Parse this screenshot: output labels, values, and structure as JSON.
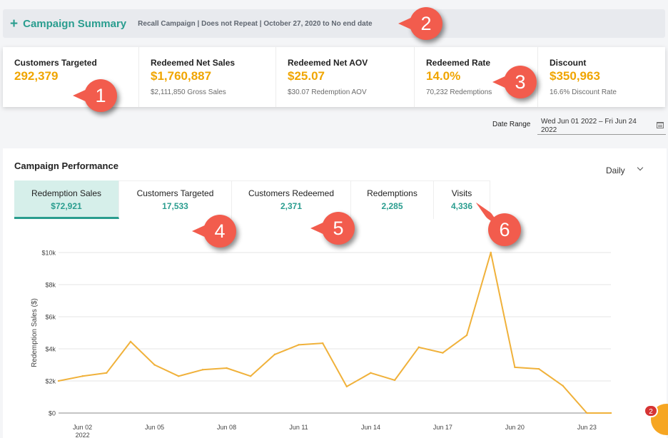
{
  "summary": {
    "plus_glyph": "+",
    "title": "Campaign Summary",
    "subtitle": "Recall Campaign | Does not Repeat | October 27, 2020 to No end date"
  },
  "kpis": [
    {
      "label": "Customers Targeted",
      "value": "292,379",
      "sub": ""
    },
    {
      "label": "Redeemed Net Sales",
      "value": "$1,760,887",
      "sub": "$2,111,850 Gross Sales"
    },
    {
      "label": "Redeemed Net AOV",
      "value": "$25.07",
      "sub": "$30.07 Redemption AOV"
    },
    {
      "label": "Redeemed Rate",
      "value": "14.0%",
      "sub": "70,232 Redemptions"
    },
    {
      "label": "Discount",
      "value": "$350,963",
      "sub": "16.6% Discount Rate"
    }
  ],
  "date_range": {
    "label": "Date Range",
    "value": "Wed Jun 01 2022 – Fri Jun 24 2022",
    "icon": "calendar-icon"
  },
  "performance": {
    "title": "Campaign Performance",
    "period": "Daily",
    "tabs": [
      {
        "label": "Redemption Sales",
        "value": "$72,921",
        "active": true
      },
      {
        "label": "Customers Targeted",
        "value": "17,533",
        "active": false
      },
      {
        "label": "Customers Redeemed",
        "value": "2,371",
        "active": false
      },
      {
        "label": "Redemptions",
        "value": "2,285",
        "active": false
      },
      {
        "label": "Visits",
        "value": "4,336",
        "active": false
      }
    ]
  },
  "chart_data": {
    "type": "line",
    "title": "",
    "xlabel": "",
    "ylabel": "Redemption Sales ($)",
    "x": [
      "2022-06-01",
      "2022-06-02",
      "2022-06-03",
      "2022-06-04",
      "2022-06-05",
      "2022-06-06",
      "2022-06-07",
      "2022-06-08",
      "2022-06-09",
      "2022-06-10",
      "2022-06-11",
      "2022-06-12",
      "2022-06-13",
      "2022-06-14",
      "2022-06-15",
      "2022-06-16",
      "2022-06-17",
      "2022-06-18",
      "2022-06-19",
      "2022-06-20",
      "2022-06-21",
      "2022-06-22",
      "2022-06-23",
      "2022-06-24"
    ],
    "values": [
      2000,
      2300,
      2500,
      4450,
      3000,
      2300,
      2700,
      2800,
      2300,
      3650,
      4250,
      4350,
      1650,
      2500,
      2050,
      4100,
      3750,
      4850,
      10000,
      2850,
      2750,
      1700,
      0,
      0
    ],
    "ylim": [
      0,
      10000
    ],
    "yticks": [
      0,
      2000,
      4000,
      6000,
      8000,
      10000
    ],
    "ytick_labels": [
      "$0",
      "$2k",
      "$4k",
      "$6k",
      "$8k",
      "$10k"
    ],
    "xtick_labels": [
      "Jun 02",
      "Jun 05",
      "Jun 08",
      "Jun 11",
      "Jun 14",
      "Jun 17",
      "Jun 20",
      "Jun 23"
    ],
    "xtick_sublabel": "2022",
    "xtick_dates": [
      "2022-06-02",
      "2022-06-05",
      "2022-06-08",
      "2022-06-11",
      "2022-06-14",
      "2022-06-17",
      "2022-06-20",
      "2022-06-23"
    ],
    "grid": true,
    "line_color": "#f0b13a"
  },
  "badges": [
    "1",
    "2",
    "3",
    "4",
    "5",
    "6"
  ],
  "chat": {
    "count": "2"
  },
  "colors": {
    "accent": "#2a9d8f",
    "highlight": "#f0a500",
    "badge": "#f25c4d"
  }
}
